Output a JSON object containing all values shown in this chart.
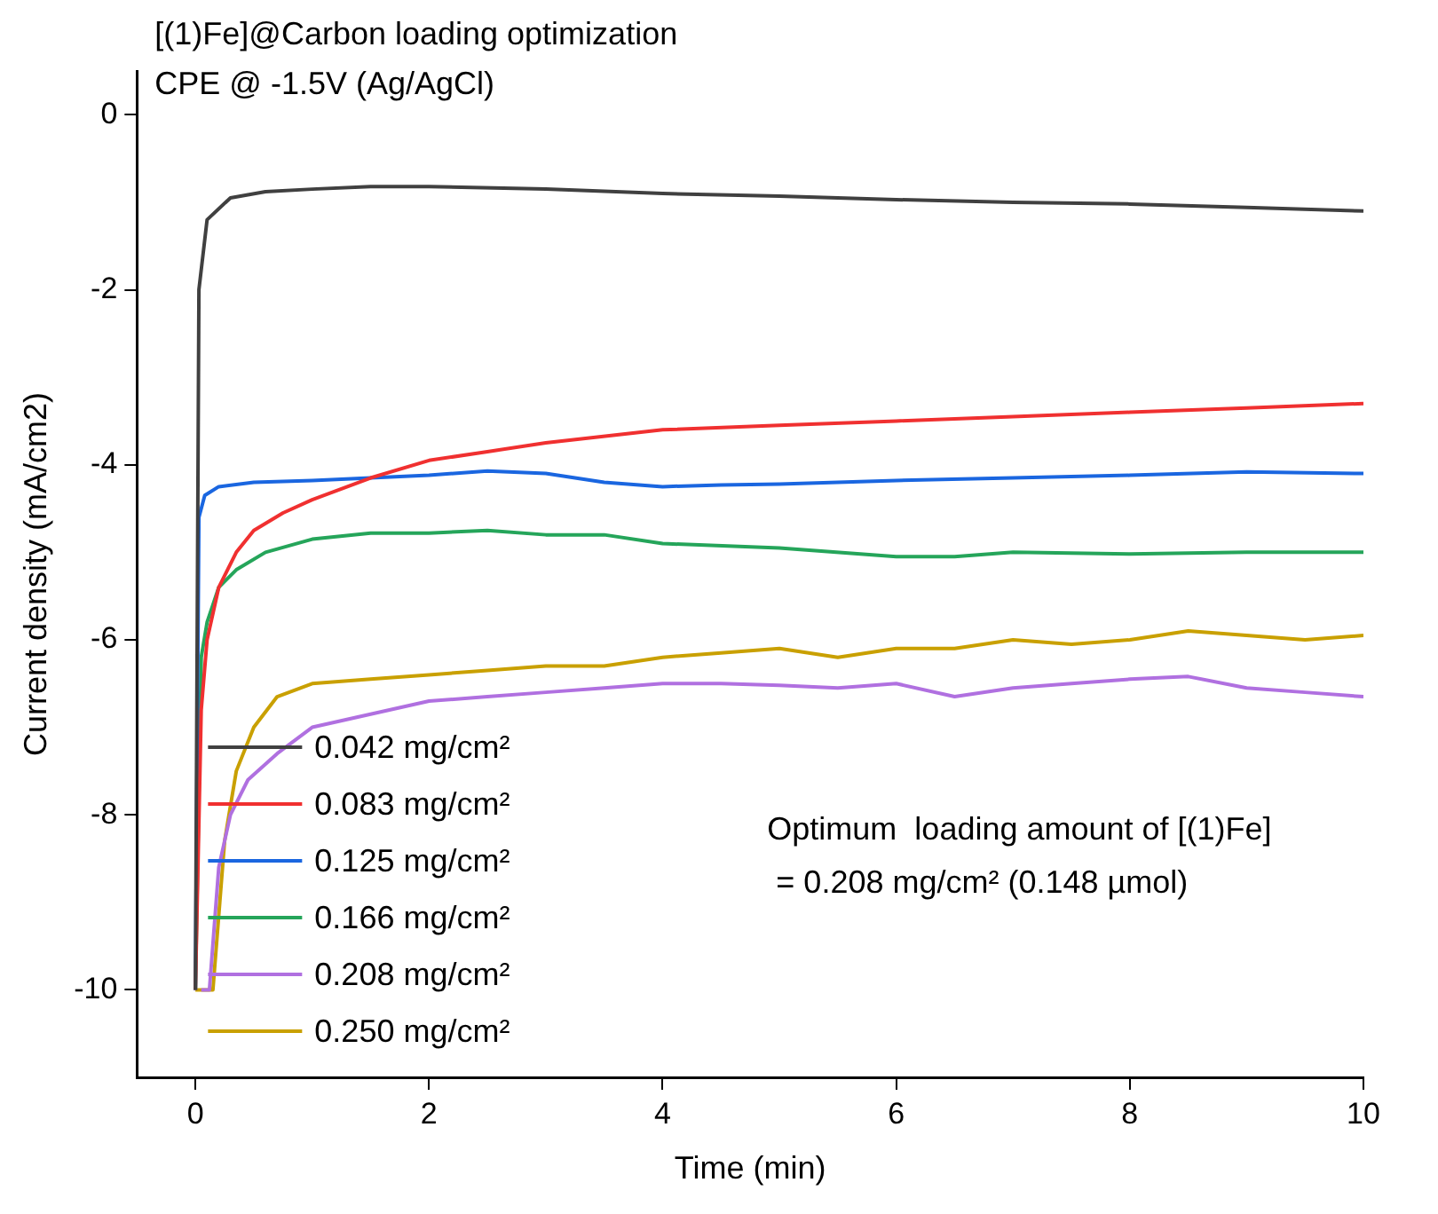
{
  "chart_data": {
    "type": "line",
    "title": "[(1)Fe]@Carbon loading optimization",
    "subtitle": "CPE @ -1.5V (Ag/AgCl)",
    "xlabel": "Time (min)",
    "ylabel": "Current density (mA/cm2)",
    "annotations": [
      "Optimum  loading amount of [(1)Fe]",
      "= 0.208 mg/cm² (0.148 µmol)"
    ],
    "xlim": [
      -0.5,
      10
    ],
    "xticks": [
      0,
      2,
      4,
      6,
      8,
      10
    ],
    "ylim": [
      -11,
      0.5
    ],
    "yticks": [
      0,
      -2,
      -4,
      -6,
      -8,
      -10
    ],
    "legend": "bottom left",
    "marker": "none",
    "line_style": "solid",
    "series": [
      {
        "name": "0.042 mg/cm²",
        "color": "#404040",
        "x": [
          0,
          0.03,
          0.1,
          0.3,
          0.6,
          1,
          1.5,
          2,
          3,
          4,
          5,
          6,
          7,
          8,
          9,
          10
        ],
        "values": [
          -10,
          -2,
          -1.2,
          -0.95,
          -0.88,
          -0.85,
          -0.82,
          -0.82,
          -0.85,
          -0.9,
          -0.93,
          -0.97,
          -1.0,
          -1.02,
          -1.06,
          -1.1
        ]
      },
      {
        "name": "0.083 mg/cm²",
        "color": "#f03030",
        "x": [
          0,
          0.05,
          0.1,
          0.2,
          0.35,
          0.5,
          0.75,
          1,
          1.5,
          2,
          2.5,
          3,
          4,
          5,
          6,
          7,
          8,
          9,
          10
        ],
        "values": [
          -10,
          -6.8,
          -6.0,
          -5.4,
          -5.0,
          -4.75,
          -4.55,
          -4.4,
          -4.15,
          -3.95,
          -3.85,
          -3.75,
          -3.6,
          -3.55,
          -3.5,
          -3.45,
          -3.4,
          -3.35,
          -3.3
        ]
      },
      {
        "name": "0.125 mg/cm²",
        "color": "#1a66e0",
        "x": [
          0,
          0.03,
          0.08,
          0.2,
          0.5,
          1,
          2,
          2.5,
          3,
          3.5,
          4,
          4.5,
          5,
          6,
          7,
          8,
          9,
          10
        ],
        "values": [
          -10,
          -4.6,
          -4.35,
          -4.25,
          -4.2,
          -4.18,
          -4.12,
          -4.07,
          -4.1,
          -4.2,
          -4.25,
          -4.23,
          -4.22,
          -4.18,
          -4.15,
          -4.12,
          -4.08,
          -4.1
        ]
      },
      {
        "name": "0.166 mg/cm²",
        "color": "#25a55a",
        "x": [
          0,
          0.05,
          0.1,
          0.2,
          0.35,
          0.6,
          1,
          1.5,
          2,
          2.5,
          3,
          3.5,
          4,
          5,
          6,
          6.5,
          7,
          8,
          9,
          10
        ],
        "values": [
          -10,
          -6.2,
          -5.8,
          -5.4,
          -5.2,
          -5.0,
          -4.85,
          -4.78,
          -4.78,
          -4.75,
          -4.8,
          -4.8,
          -4.9,
          -4.95,
          -5.05,
          -5.05,
          -5.0,
          -5.02,
          -5.0,
          -5.0
        ]
      },
      {
        "name": "0.208 mg/cm²",
        "color": "#b070e0",
        "x": [
          0.05,
          0.12,
          0.2,
          0.3,
          0.45,
          0.7,
          1,
          1.5,
          2,
          2.5,
          3,
          3.5,
          4,
          4.5,
          5,
          5.5,
          6,
          6.5,
          7,
          7.5,
          8,
          8.5,
          9,
          9.5,
          10
        ],
        "values": [
          -10,
          -10,
          -8.6,
          -8.0,
          -7.6,
          -7.3,
          -7.0,
          -6.85,
          -6.7,
          -6.65,
          -6.6,
          -6.55,
          -6.5,
          -6.5,
          -6.52,
          -6.55,
          -6.5,
          -6.65,
          -6.55,
          -6.5,
          -6.45,
          -6.42,
          -6.55,
          -6.6,
          -6.65
        ]
      },
      {
        "name": "0.250 mg/cm²",
        "color": "#c9a000",
        "x": [
          0,
          0.15,
          0.25,
          0.35,
          0.5,
          0.7,
          1,
          1.5,
          2,
          2.5,
          3,
          3.5,
          4,
          4.5,
          5,
          5.5,
          6,
          6.5,
          7,
          7.5,
          8,
          8.5,
          9,
          9.5,
          10
        ],
        "values": [
          -10,
          -10,
          -8.3,
          -7.5,
          -7.0,
          -6.65,
          -6.5,
          -6.45,
          -6.4,
          -6.35,
          -6.3,
          -6.3,
          -6.2,
          -6.15,
          -6.1,
          -6.2,
          -6.1,
          -6.1,
          -6.0,
          -6.05,
          -6.0,
          -5.9,
          -5.95,
          -6.0,
          -5.95
        ]
      }
    ]
  }
}
